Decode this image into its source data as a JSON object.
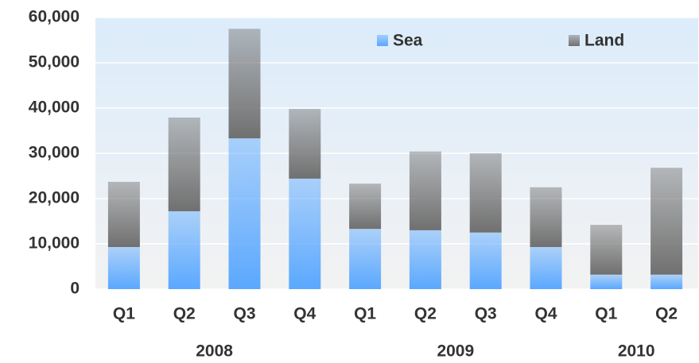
{
  "chart_data": {
    "type": "stacked-bar",
    "groups": [
      {
        "label": "2008",
        "categories": [
          "Q1",
          "Q2",
          "Q3",
          "Q4"
        ]
      },
      {
        "label": "2009",
        "categories": [
          "Q1",
          "Q2",
          "Q3",
          "Q4"
        ]
      },
      {
        "label": "2010",
        "categories": [
          "Q1",
          "Q2"
        ]
      }
    ],
    "series": [
      {
        "name": "Sea",
        "color": "#5aa8ff",
        "values": [
          9300,
          17200,
          33300,
          24400,
          13300,
          13000,
          12500,
          9300,
          3200,
          3200
        ]
      },
      {
        "name": "Land",
        "color": "#707070",
        "values": [
          14400,
          20700,
          24200,
          15400,
          10000,
          17400,
          17500,
          13200,
          11000,
          23600
        ]
      }
    ],
    "ylim": [
      0,
      60000
    ],
    "yticks": [
      0,
      {
        "value": 10000,
        "label": "10,000"
      },
      {
        "value": 20000,
        "label": "20,000"
      },
      {
        "value": 30000,
        "label": "30,000"
      },
      {
        "value": 40000,
        "label": "40,000"
      },
      {
        "value": 50000,
        "label": "50,000"
      },
      {
        "value": 60000,
        "label": "60,000"
      }
    ],
    "grid": true,
    "legend": "top"
  }
}
